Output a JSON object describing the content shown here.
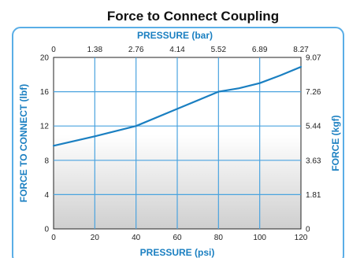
{
  "chart_data": {
    "type": "line",
    "title": "Force to Connect Coupling",
    "xlabel": "PRESSURE (psi)",
    "ylabel": "FORCE TO CONNECT (lbf)",
    "x2label": "PRESSURE (bar)",
    "y2label": "FORCE (kgf)",
    "xlim": [
      0,
      120
    ],
    "ylim": [
      0,
      20
    ],
    "x_ticks": [
      "0",
      "20",
      "40",
      "60",
      "80",
      "100",
      "120"
    ],
    "y_ticks": [
      "0",
      "4",
      "8",
      "12",
      "16",
      "20"
    ],
    "x2_ticks": [
      "0",
      "1.38",
      "2.76",
      "4.14",
      "5.52",
      "6.89",
      "8.27"
    ],
    "y2_ticks": [
      "0",
      "1.81",
      "3.63",
      "5.44",
      "7.26",
      "9.07"
    ],
    "grid": true,
    "series": [
      {
        "x": [
          0,
          20,
          40,
          60,
          80,
          90,
          100,
          110,
          120
        ],
        "y": [
          9.7,
          10.8,
          12.0,
          14.0,
          16.0,
          16.4,
          17.0,
          17.9,
          18.9
        ]
      }
    ],
    "colors": {
      "line": "#1a7fc1",
      "grid": "#4aa3df",
      "frame": "#5aaee6",
      "title_text": "#1a7fc1"
    }
  }
}
